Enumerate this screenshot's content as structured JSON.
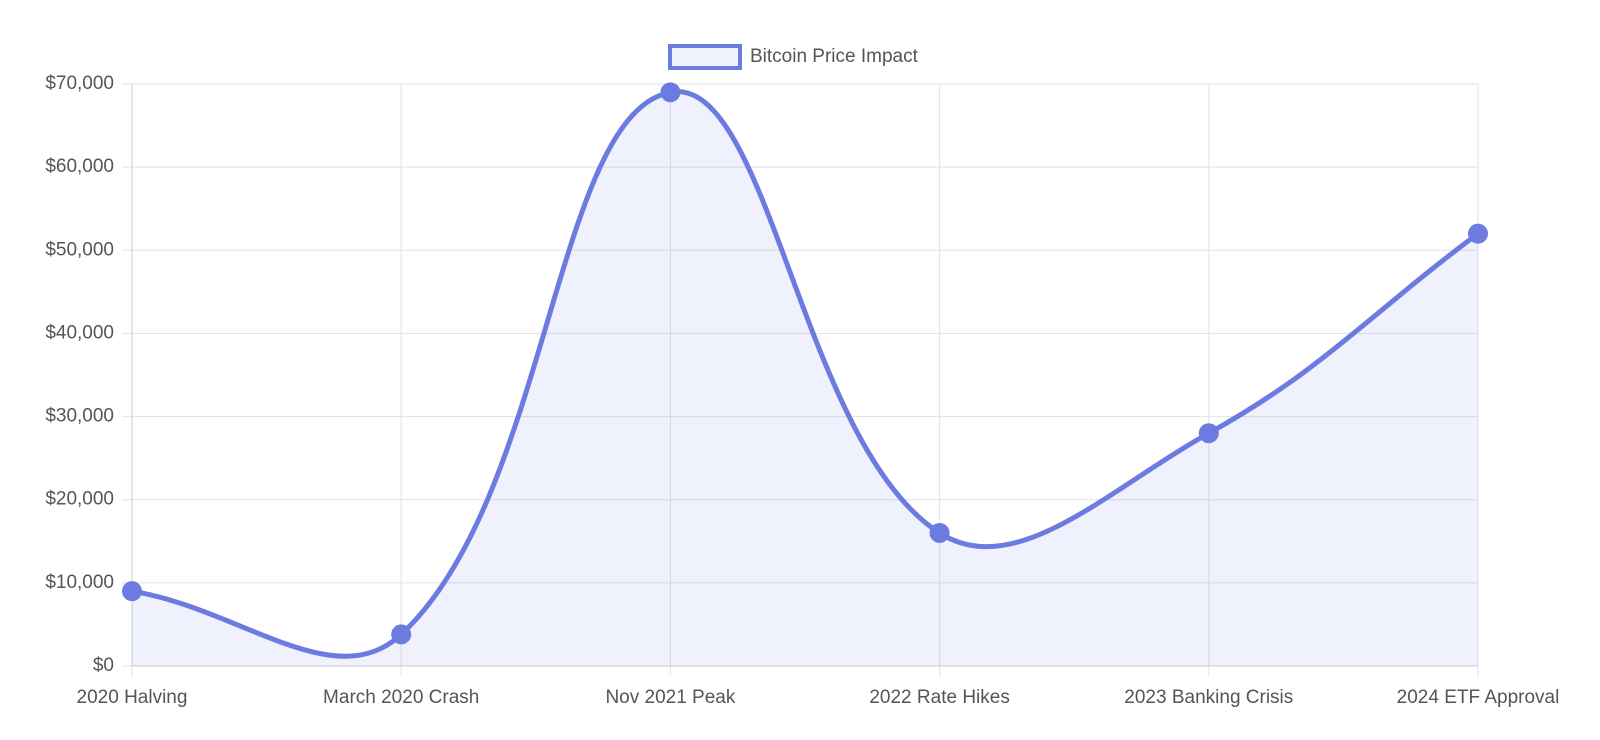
{
  "chart_data": {
    "type": "line",
    "categories": [
      "2020 Halving",
      "March 2020 Crash",
      "Nov 2021 Peak",
      "2022 Rate Hikes",
      "2023 Banking Crisis",
      "2024 ETF Approval"
    ],
    "series": [
      {
        "name": "Bitcoin Price Impact",
        "color": "#6b7be0",
        "values": [
          9000,
          3800,
          69000,
          16000,
          28000,
          52000
        ]
      }
    ],
    "ylim": [
      0,
      70000
    ],
    "yticks": [
      {
        "value": 0,
        "label": "$0"
      },
      {
        "value": 10000,
        "label": "$10,000"
      },
      {
        "value": 20000,
        "label": "$20,000"
      },
      {
        "value": 30000,
        "label": "$30,000"
      },
      {
        "value": 40000,
        "label": "$40,000"
      },
      {
        "value": 50000,
        "label": "$50,000"
      },
      {
        "value": 60000,
        "label": "$60,000"
      },
      {
        "value": 70000,
        "label": "$70,000"
      }
    ],
    "grid": true,
    "legend": "top"
  }
}
